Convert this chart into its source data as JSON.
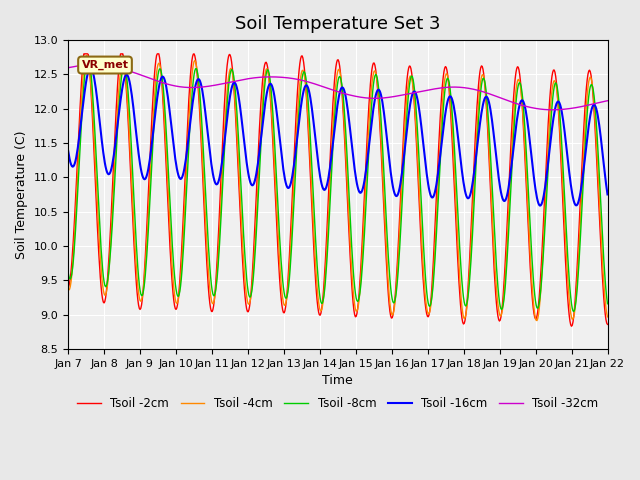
{
  "title": "Soil Temperature Set 3",
  "xlabel": "Time",
  "ylabel": "Soil Temperature (C)",
  "ylim": [
    8.5,
    13.0
  ],
  "date_labels": [
    "Jan 7",
    "Jan 8",
    "Jan 9",
    "Jan 10",
    "Jan 11",
    "Jan 12",
    "Jan 13",
    "Jan 14",
    "Jan 15",
    "Jan 16",
    "Jan 17",
    "Jan 18",
    "Jan 19",
    "Jan 20",
    "Jan 21",
    "Jan 22"
  ],
  "n_days": 15,
  "points_per_day": 48,
  "legend_labels": [
    "Tsoil -2cm",
    "Tsoil -4cm",
    "Tsoil -8cm",
    "Tsoil -16cm",
    "Tsoil -32cm"
  ],
  "line_colors": [
    "#ff0000",
    "#ff8800",
    "#00cc00",
    "#0000ff",
    "#cc00cc"
  ],
  "line_widths": [
    1.0,
    1.0,
    1.0,
    1.5,
    1.0
  ],
  "bg_color": "#e8e8e8",
  "plot_bg_color": "#f0f0f0",
  "annotation_text": "VR_met",
  "grid_color": "#ffffff",
  "title_fontsize": 13,
  "label_fontsize": 9,
  "tick_fontsize": 8
}
